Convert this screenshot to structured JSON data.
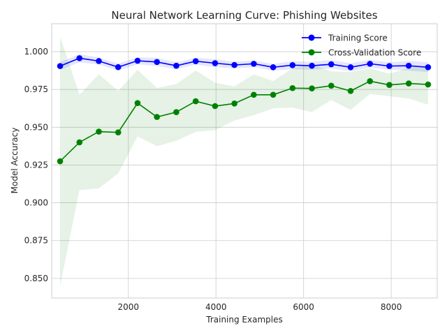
{
  "chart_data": {
    "type": "line",
    "title": "Neural Network Learning Curve: Phishing Websites",
    "xlabel": "Training Examples",
    "ylabel": "Model Accuracy",
    "xlim": [
      250,
      9050
    ],
    "ylim": [
      0.837,
      1.0185
    ],
    "xticks": [
      2000,
      4000,
      6000,
      8000
    ],
    "yticks": [
      0.85,
      0.875,
      0.9,
      0.925,
      0.95,
      0.975,
      1.0
    ],
    "grid": true,
    "legend_position": "top-right",
    "x": [
      442,
      884,
      1326,
      1768,
      2210,
      2652,
      3094,
      3537,
      3979,
      4421,
      4863,
      5305,
      5747,
      6189,
      6631,
      7073,
      7515,
      7957,
      8399,
      8841
    ],
    "series": [
      {
        "name": "Training Score",
        "color": "#0000ff",
        "values": [
          0.9905,
          0.9957,
          0.9938,
          0.9898,
          0.994,
          0.9932,
          0.9907,
          0.9937,
          0.9924,
          0.9912,
          0.992,
          0.9897,
          0.9911,
          0.9907,
          0.9917,
          0.9897,
          0.992,
          0.9905,
          0.9907,
          0.9897
        ],
        "band_lower": [
          0.988,
          0.993,
          0.9915,
          0.9875,
          0.9918,
          0.9905,
          0.9885,
          0.9915,
          0.9898,
          0.989,
          0.9898,
          0.9875,
          0.9885,
          0.988,
          0.989,
          0.987,
          0.9895,
          0.988,
          0.9875,
          0.9865
        ],
        "band_upper": [
          0.993,
          0.9984,
          0.9961,
          0.9921,
          0.9962,
          0.9959,
          0.9929,
          0.9959,
          0.995,
          0.9934,
          0.9942,
          0.9919,
          0.9937,
          0.9934,
          0.9944,
          0.9924,
          0.9945,
          0.993,
          0.9939,
          0.9929
        ]
      },
      {
        "name": "Cross-Validation Score",
        "color": "#008000",
        "values": [
          0.9275,
          0.94,
          0.9471,
          0.9466,
          0.966,
          0.9568,
          0.96,
          0.9672,
          0.964,
          0.9657,
          0.9715,
          0.9715,
          0.9759,
          0.9757,
          0.9775,
          0.974,
          0.9805,
          0.978,
          0.979,
          0.9783
        ],
        "band_lower": [
          0.845,
          0.9085,
          0.9095,
          0.9195,
          0.944,
          0.9375,
          0.941,
          0.947,
          0.948,
          0.9545,
          0.958,
          0.9625,
          0.963,
          0.96,
          0.968,
          0.9615,
          0.972,
          0.9705,
          0.969,
          0.965
        ],
        "band_upper": [
          1.01,
          0.9715,
          0.985,
          0.974,
          0.988,
          0.976,
          0.9785,
          0.9875,
          0.9795,
          0.977,
          0.985,
          0.9805,
          0.989,
          0.9915,
          0.987,
          0.9865,
          0.989,
          0.9855,
          0.989,
          0.9915
        ]
      }
    ]
  }
}
